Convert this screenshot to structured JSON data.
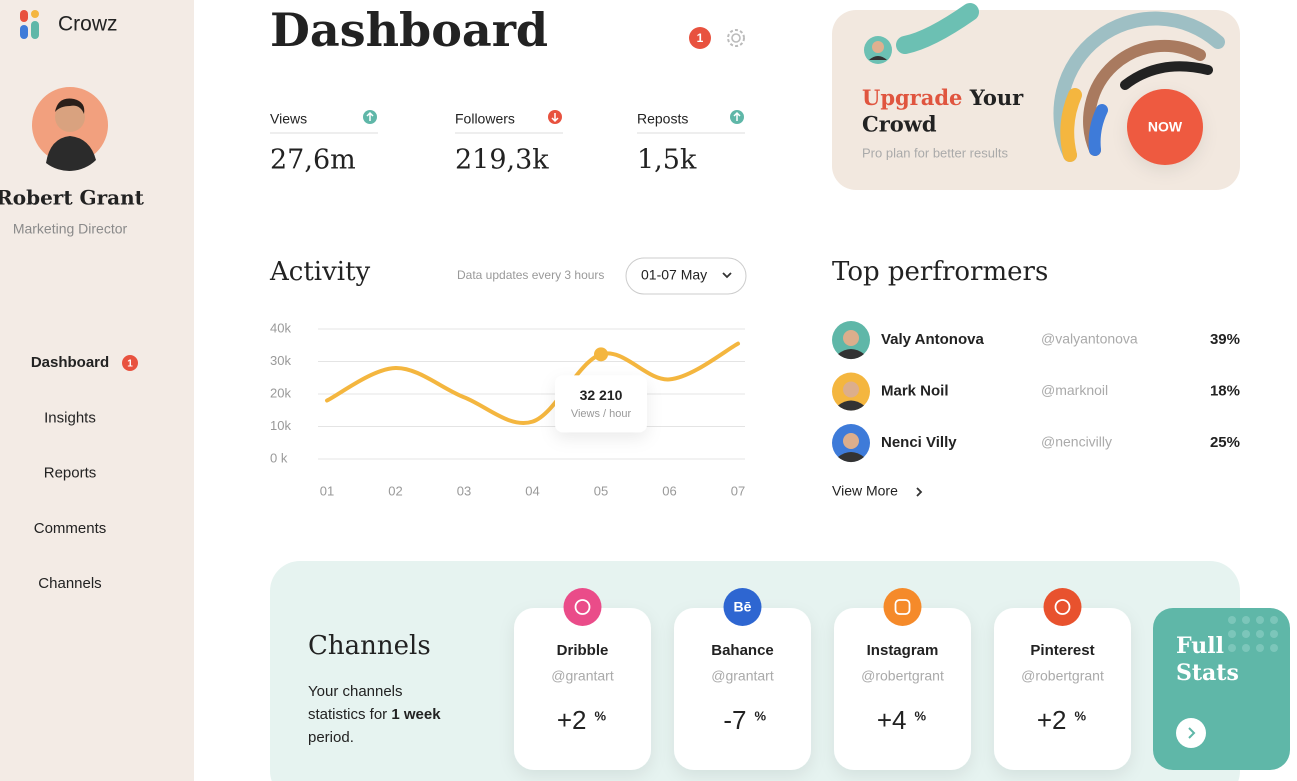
{
  "sidebar": {
    "brand": "Crowz",
    "user": {
      "name": "Robert Grant",
      "role": "Marketing Director"
    },
    "nav": [
      {
        "label": "Dashboard",
        "badge": "1",
        "active": true
      },
      {
        "label": "Insights"
      },
      {
        "label": "Reports"
      },
      {
        "label": "Comments"
      },
      {
        "label": "Channels"
      }
    ]
  },
  "header": {
    "title": "Dashboard",
    "notifications": "1"
  },
  "stats": [
    {
      "label": "Views",
      "value": "27,6m",
      "trend": "up"
    },
    {
      "label": "Followers",
      "value": "219,3k",
      "trend": "down"
    },
    {
      "label": "Reposts",
      "value": "1,5k",
      "trend": "up"
    }
  ],
  "promo": {
    "title_accent": "Upgrade",
    "title_line1": "Your",
    "title_line2": "Crowd",
    "subtitle": "Pro plan for better results",
    "button": "NOW"
  },
  "chart_data": {
    "type": "line",
    "title": "Activity",
    "subtitle": "Data updates every 3 hours",
    "range_label": "01-07 May",
    "categories": [
      "01",
      "02",
      "03",
      "04",
      "05",
      "06",
      "07"
    ],
    "series": [
      {
        "name": "Views / hour",
        "color": "#f4b63f",
        "values": [
          18000,
          28000,
          19000,
          11500,
          32210,
          24500,
          35500
        ],
        "value_labels": [
          null,
          null,
          null,
          null,
          "32 210",
          null,
          null
        ]
      }
    ],
    "ylim": [
      0,
      40000
    ],
    "yticks": [
      {
        "value": 0,
        "label": "0 k"
      },
      {
        "value": 10000,
        "label": "10k"
      },
      {
        "value": 20000,
        "label": "20k"
      },
      {
        "value": 30000,
        "label": "30k"
      },
      {
        "value": 40000,
        "label": "40k"
      }
    ],
    "grid": true
  },
  "top_performers": {
    "title": "Top perfrormers",
    "rows": [
      {
        "name": "Valy Antonova",
        "handle": "@valyantonova",
        "share": "39%"
      },
      {
        "name": "Mark Noil",
        "handle": "@marknoil",
        "share": "18%"
      },
      {
        "name": "Nenci Villy",
        "handle": "@nencivilly",
        "share": "25%"
      }
    ],
    "more": "View More"
  },
  "channels": {
    "title": "Channels",
    "description": {
      "line1": "Your channels",
      "line2": "statistics for",
      "bold": "1 week",
      "line3": "period."
    },
    "cards": [
      {
        "name": "Dribble",
        "handle": "@grantart",
        "change": "+2",
        "unit": "%",
        "color": "#ea4c89"
      },
      {
        "name": "Bahance",
        "handle": "@grantart",
        "change": "-7",
        "unit": "%",
        "color": "#2e66d1",
        "icon_label": "Bē"
      },
      {
        "name": "Instagram",
        "handle": "@robertgrant",
        "change": "+4",
        "unit": "%",
        "color": "#f58a2a"
      },
      {
        "name": "Pinterest",
        "handle": "@robertgrant",
        "change": "+2",
        "unit": "%",
        "color": "#e8522e"
      }
    ],
    "full_stats": {
      "line1": "Full",
      "line2": "Stats"
    }
  }
}
